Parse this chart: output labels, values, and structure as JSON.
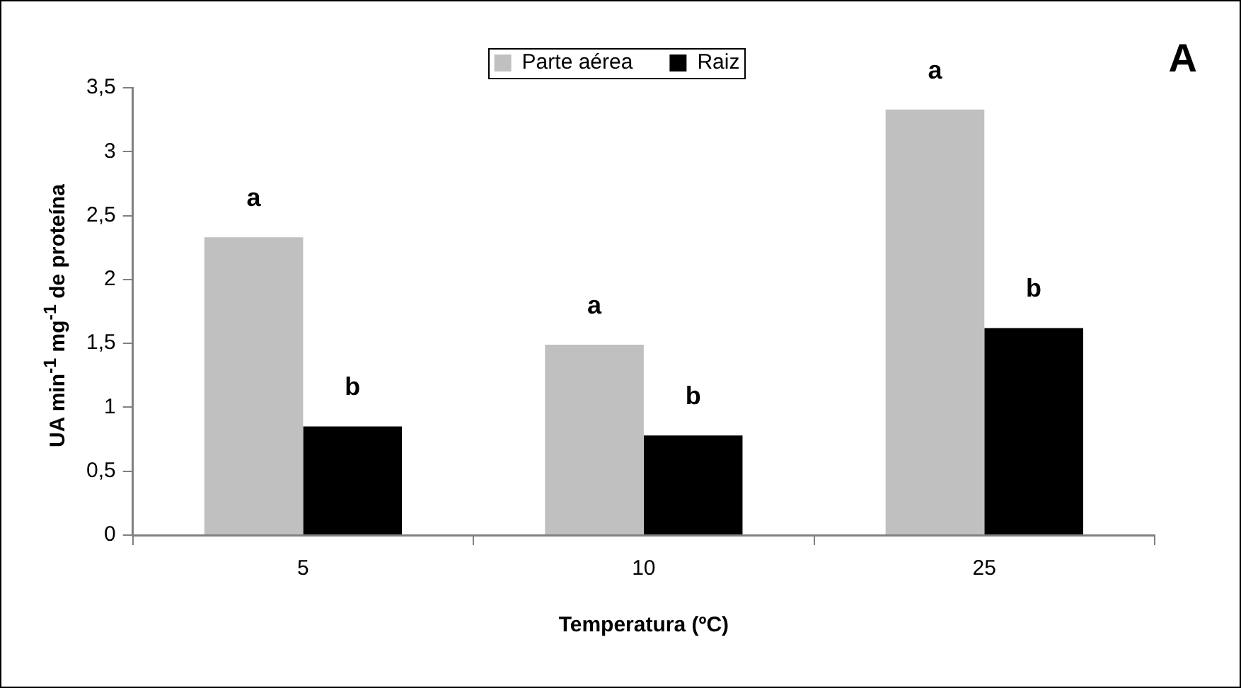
{
  "chart_data": {
    "type": "bar",
    "xlabel": "Temperatura (ºC)",
    "ylabel": "UA min$^{-1}$ mg$^{-1}$ de proteína",
    "categories": [
      "5",
      "10",
      "25"
    ],
    "series": [
      {
        "name": "Parte aérea",
        "color": "#c0c0c0",
        "values": [
          2.33,
          1.49,
          3.33
        ],
        "value_labels": [
          "a",
          "a",
          "a"
        ]
      },
      {
        "name": "Raiz",
        "color": "#000000",
        "values": [
          0.85,
          0.78,
          1.62
        ],
        "value_labels": [
          "b",
          "b",
          "b"
        ]
      }
    ],
    "ylim": [
      0,
      3.5
    ],
    "yticks": [
      0,
      {
        "value": 0.5,
        "label": "0,5"
      },
      1,
      {
        "value": 1.5,
        "label": "1,5"
      },
      2,
      {
        "value": 2.5,
        "label": "2,5"
      },
      3,
      {
        "value": 3.5,
        "label": "3,5"
      }
    ],
    "grid": false,
    "legend": "top",
    "annotations": [
      "A"
    ]
  }
}
